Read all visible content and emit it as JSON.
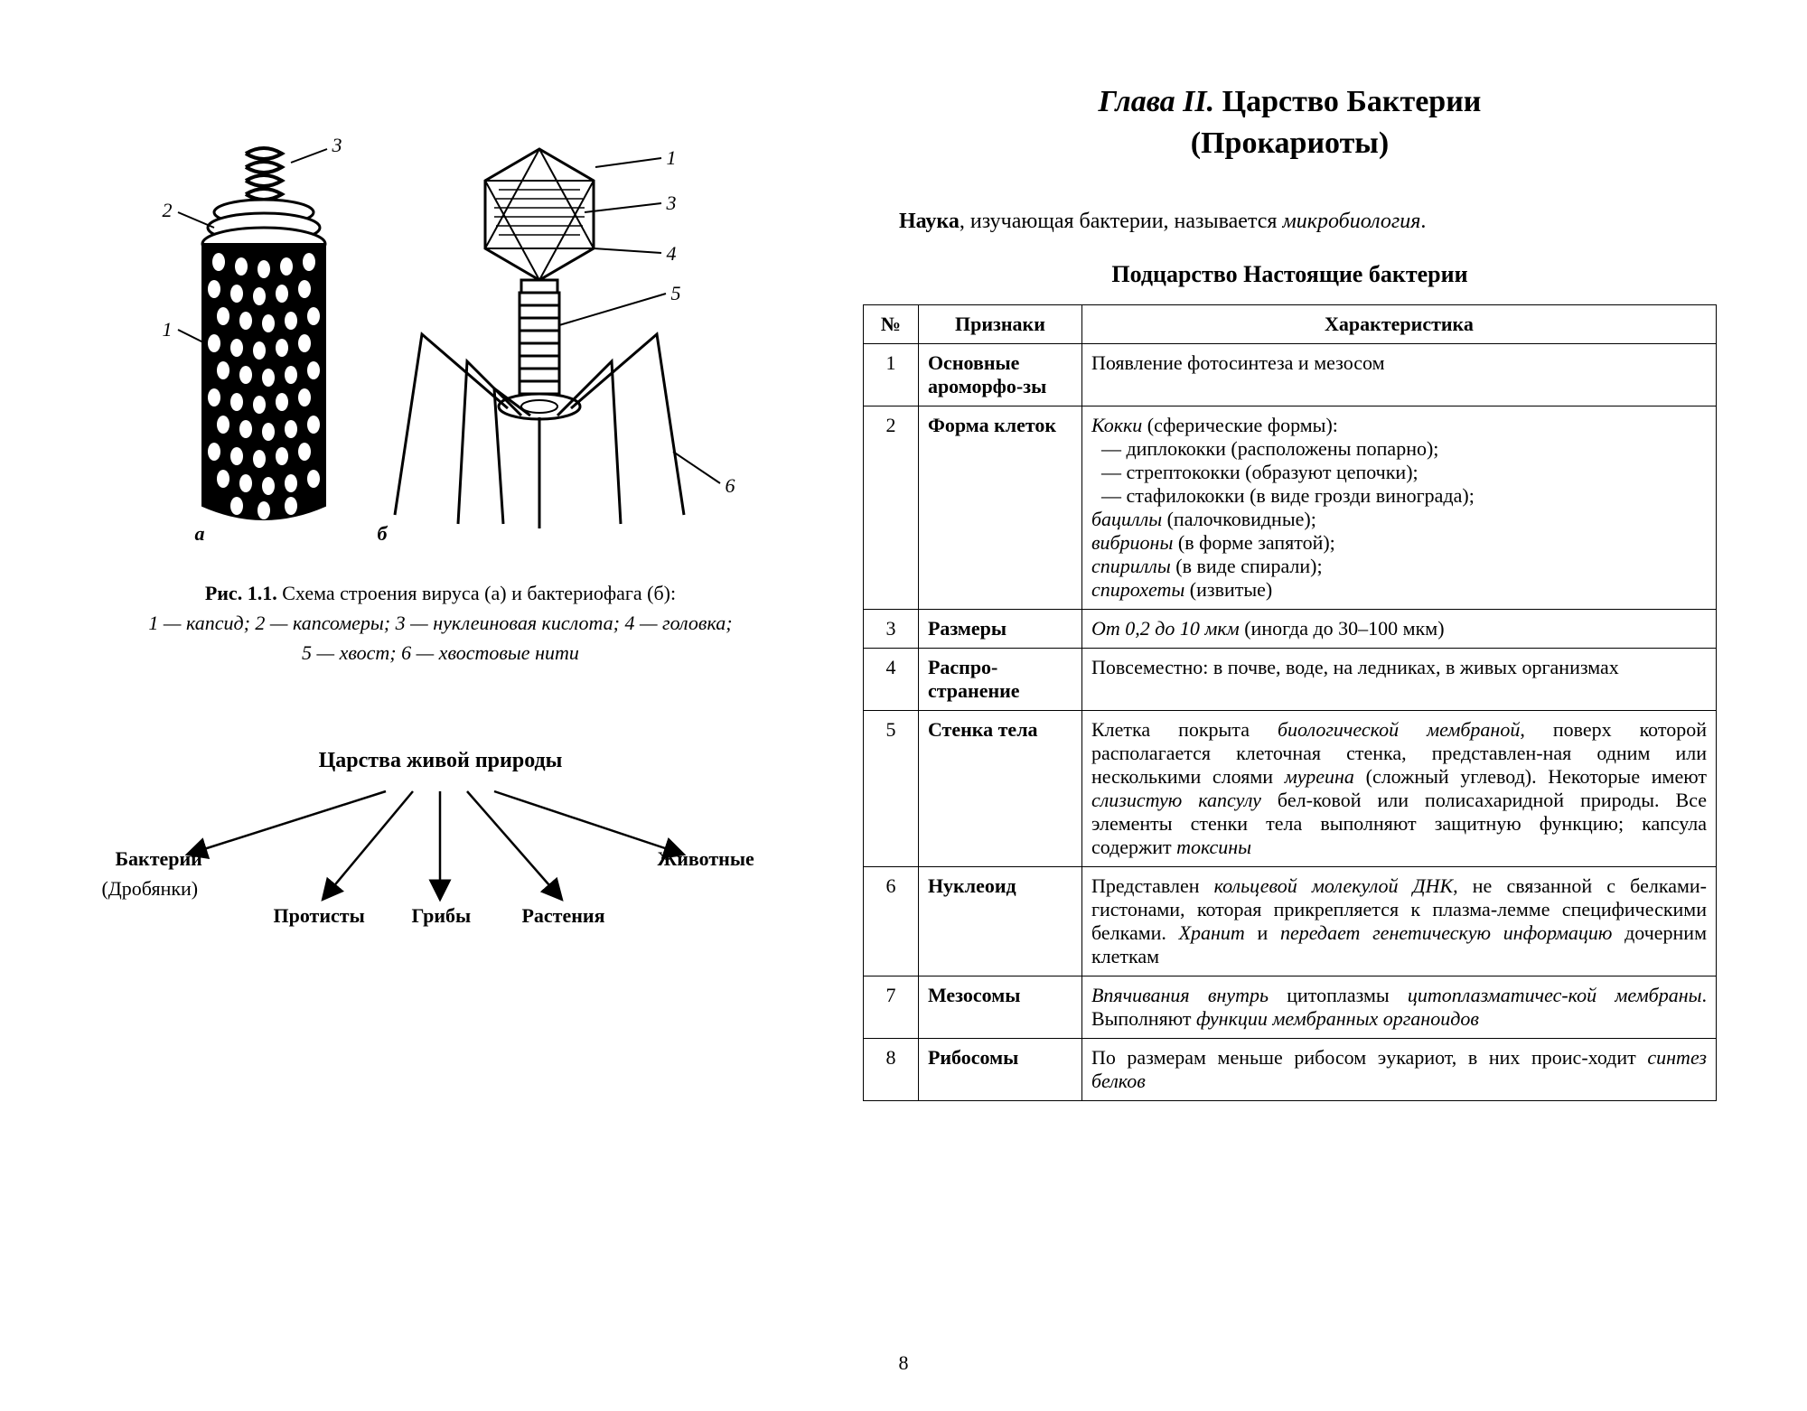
{
  "figure": {
    "labels": {
      "a_left_1": "1",
      "a_left_2": "2",
      "a_top_3": "3",
      "a_letter": "а",
      "b_letter": "б",
      "b_1": "1",
      "b_3": "3",
      "b_4": "4",
      "b_5": "5",
      "b_6": "6"
    },
    "caption_bold": "Рис. 1.1.",
    "caption_rest": " Схема строения вируса (а) и бактериофага (б):",
    "caption_line2": "1 — капсид; 2 — капсомеры; 3 — нуклеиновая кислота; 4 — головка;",
    "caption_line3": "5 — хвост; 6 — хвостовые нити"
  },
  "tree": {
    "title": "Царства живой природы",
    "nodes": {
      "bacteria": "Бактерии",
      "drobyanki": "(Дробянки)",
      "protists": "Протисты",
      "fungi": "Грибы",
      "plants": "Растения",
      "animals": "Животные"
    }
  },
  "chapter": {
    "line1_italic": "Глава II.",
    "line1_bold": " Царство Бактерии",
    "line2_bold": "(Прокариоты)"
  },
  "intro": {
    "bold": "Наука",
    "rest1": ", изучающая бактерии, называется ",
    "italic": "микробиология",
    "tail": "."
  },
  "subkingdom": "Подцарство Настоящие бактерии",
  "table": {
    "headers": {
      "num": "№",
      "sign": "Признаки",
      "desc": "Характеристика"
    },
    "rows": [
      {
        "n": "1",
        "sign": "Основные ароморфо-зы",
        "desc_html": "Появление фотосинтеза и мезосом"
      },
      {
        "n": "2",
        "sign": "Форма клеток",
        "desc_html": "<span class='i'>Кокки</span> (сферические формы):<br>&nbsp;&nbsp;— диплококки (расположены попарно);<br>&nbsp;&nbsp;— стрептококки (образуют цепочки);<br>&nbsp;&nbsp;— стафилококки (в виде грозди винограда);<br><span class='i'>бациллы</span> (палочковидные);<br><span class='i'>вибрионы</span> (в форме запятой);<br><span class='i'>спириллы</span> (в виде спирали);<br><span class='i'>спирохеты</span> (извитые)"
      },
      {
        "n": "3",
        "sign": "Размеры",
        "desc_html": "<span class='i'>От 0,2 до 10 мкм</span> (иногда до 30–100 мкм)"
      },
      {
        "n": "4",
        "sign": "Распро-странение",
        "desc_html": "Повсеместно: в почве, воде, на ледниках, в живых организмах"
      },
      {
        "n": "5",
        "sign": "Стенка тела",
        "desc_html": "Клетка покрыта <span class='i'>биологической мембраной</span>, поверх которой располагается клеточная стенка, представлен-ная одним или несколькими слоями <span class='i'>муреина</span> (сложный углевод). Некоторые имеют <span class='i'>слизистую капсулу</span> бел-ковой или полисахаридной природы. Все элементы стенки тела выполняют защитную функцию; капсула содержит <span class='i'>токсины</span>"
      },
      {
        "n": "6",
        "sign": "Нуклеоид",
        "desc_html": "Представлен <span class='i'>кольцевой молекулой ДНК</span>, не связанной с белками-гистонами, которая прикрепляется к плазма-лемме специфическими белками. <span class='i'>Хранит</span> и <span class='i'>передает генетическую информацию</span> дочерним клеткам"
      },
      {
        "n": "7",
        "sign": "Мезосомы",
        "desc_html": "<span class='i'>Впячивания внутрь</span> цитоплазмы <span class='i'>цитоплазматичес-кой мембраны</span>. Выполняют <span class='i'>функции мембранных органоидов</span>"
      },
      {
        "n": "8",
        "sign": "Рибосомы",
        "desc_html": "По размерам меньше рибосом эукариот, в них проис-ходит <span class='i'>синтез белков</span>"
      }
    ]
  },
  "page_number": "8",
  "colors": {
    "text": "#000000",
    "bg": "#ffffff"
  }
}
